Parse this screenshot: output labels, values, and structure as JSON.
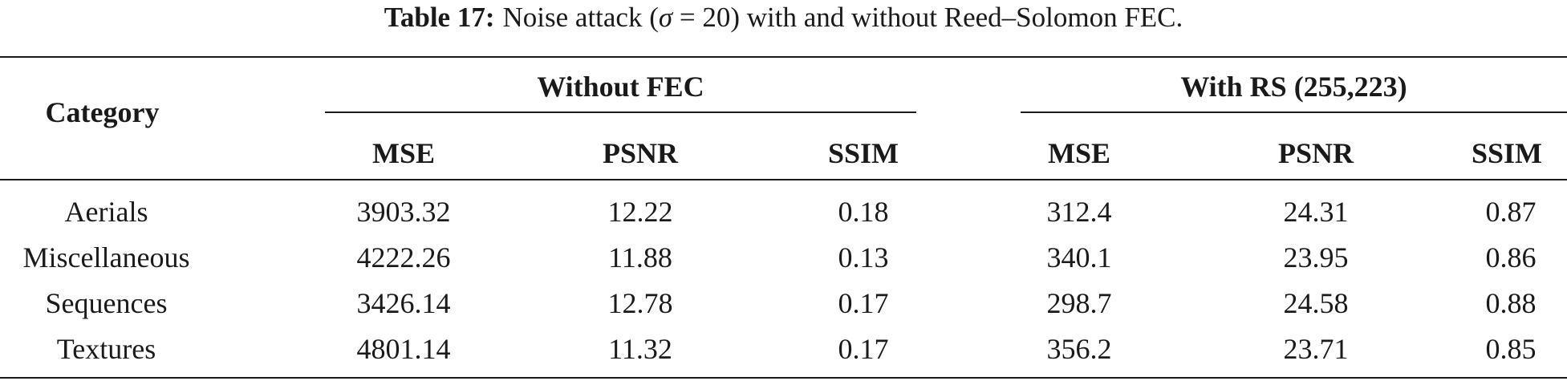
{
  "caption": {
    "label": "Table 17:",
    "text_before_sigma": "Noise attack (",
    "sigma": "σ",
    "text_after_sigma": " = 20) with and without Reed–Solomon FEC."
  },
  "table": {
    "category_header": "Category",
    "groups": [
      "Without FEC",
      "With RS (255,223)"
    ],
    "subheaders": [
      "MSE",
      "PSNR",
      "SSIM",
      "MSE",
      "PSNR",
      "SSIM"
    ],
    "rows": [
      {
        "category": "Aerials",
        "values": [
          "3903.32",
          "12.22",
          "0.18",
          "312.4",
          "24.31",
          "0.87"
        ]
      },
      {
        "category": "Miscellaneous",
        "values": [
          "4222.26",
          "11.88",
          "0.13",
          "340.1",
          "23.95",
          "0.86"
        ]
      },
      {
        "category": "Sequences",
        "values": [
          "3426.14",
          "12.78",
          "0.17",
          "298.7",
          "24.58",
          "0.88"
        ]
      },
      {
        "category": "Textures",
        "values": [
          "4801.14",
          "11.32",
          "0.17",
          "356.2",
          "23.71",
          "0.85"
        ]
      }
    ]
  }
}
